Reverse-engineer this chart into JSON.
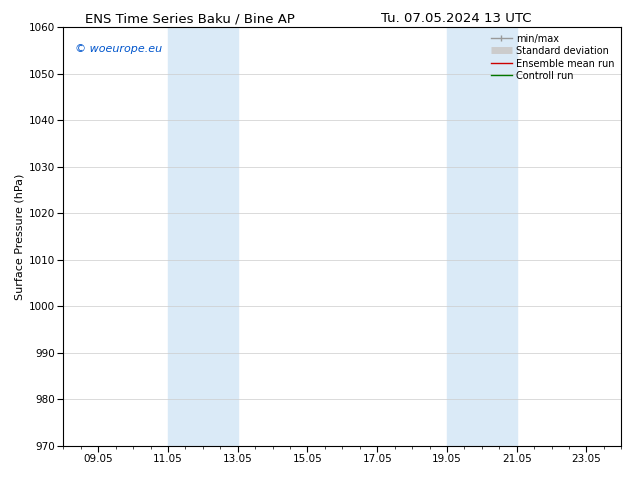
{
  "title_left": "ENS Time Series Baku / Bine AP",
  "title_right": "Tu. 07.05.2024 13 UTC",
  "ylabel": "Surface Pressure (hPa)",
  "ylim": [
    970,
    1060
  ],
  "yticks": [
    970,
    980,
    990,
    1000,
    1010,
    1020,
    1030,
    1040,
    1050,
    1060
  ],
  "xtick_labels": [
    "09.05",
    "11.05",
    "13.05",
    "15.05",
    "17.05",
    "19.05",
    "21.05",
    "23.05"
  ],
  "xtick_positions": [
    1,
    3,
    5,
    7,
    9,
    11,
    13,
    15
  ],
  "xlim": [
    0,
    16
  ],
  "shade_bands": [
    {
      "xmin": 3,
      "xmax": 5,
      "color": "#daeaf7"
    },
    {
      "xmin": 11,
      "xmax": 13,
      "color": "#daeaf7"
    }
  ],
  "watermark": "© woeurope.eu",
  "watermark_color": "#0055cc",
  "bg_color": "#ffffff",
  "title_fontsize": 9.5,
  "ylabel_fontsize": 8,
  "tick_fontsize": 7.5,
  "legend_fontsize": 7,
  "legend_items": [
    {
      "label": "min/max",
      "color": "#999999",
      "lw": 1.0
    },
    {
      "label": "Standard deviation",
      "color": "#cccccc",
      "lw": 5
    },
    {
      "label": "Ensemble mean run",
      "color": "#cc0000",
      "lw": 1.0
    },
    {
      "label": "Controll run",
      "color": "#007700",
      "lw": 1.0
    }
  ]
}
